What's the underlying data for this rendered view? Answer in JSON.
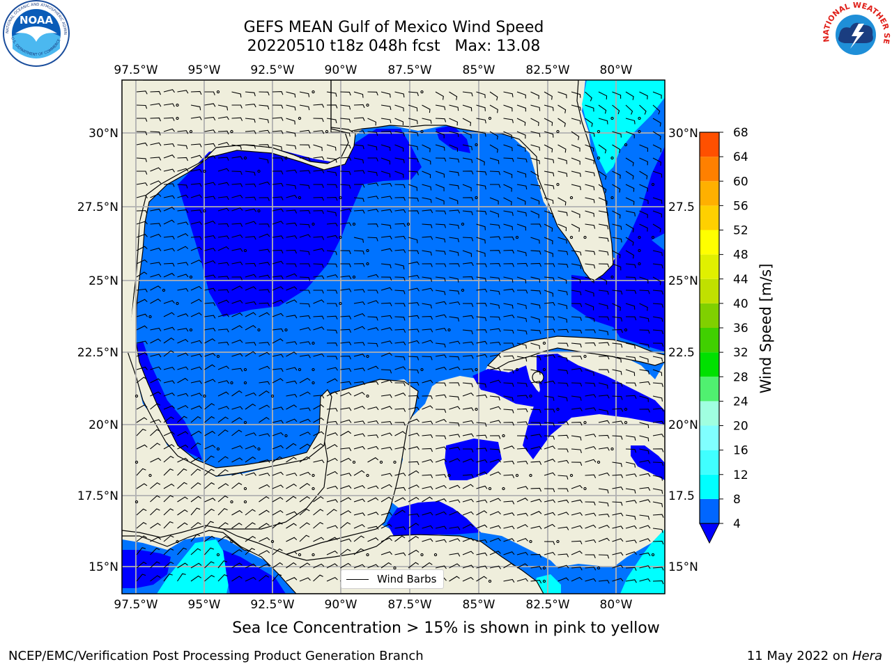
{
  "title_line1": "GEFS MEAN Gulf of Mexico Wind Speed",
  "title_line2": "20220510 t18z 048h fcst   Max: 13.08",
  "top_lon_labels": [
    "97.5°W",
    "95°W",
    "92.5°W",
    "90°W",
    "87.5°W",
    "85°W",
    "82.5°W",
    "80°W"
  ],
  "bottom_lon_labels": [
    "97.5°W",
    "95°W",
    "92.5°W",
    "90°W",
    "87.5°W",
    "85°W",
    "82.5°W",
    "80°W"
  ],
  "left_lat_labels": [
    "30°N",
    "27.5°N",
    "25°N",
    "22.5°N",
    "20°N",
    "17.5°N",
    "15°N"
  ],
  "right_lat_labels": [
    "30°N",
    "27.5",
    "25°N",
    "22.5",
    "20°N",
    "17.5",
    "15°N"
  ],
  "colorbar": {
    "label": "Wind Speed [m/s]",
    "ticks": [
      "68",
      "64",
      "60",
      "56",
      "52",
      "48",
      "44",
      "40",
      "36",
      "32",
      "28",
      "24",
      "20",
      "16",
      "12",
      "8",
      "4"
    ],
    "colors": [
      "#0000ff",
      "#0066ff",
      "#00ffff",
      "#40ffff",
      "#80ffff",
      "#a0ffe0",
      "#50f070",
      "#00e000",
      "#40d000",
      "#80d000",
      "#c0e000",
      "#e0f000",
      "#ffff00",
      "#ffd000",
      "#ffb000",
      "#ff8000",
      "#ff5000",
      "#ff2000",
      "#ff0000"
    ]
  },
  "legend": {
    "label": "Wind Barbs"
  },
  "caption": "Sea Ice Concentration > 15% is shown in pink to yellow",
  "footer_left": "NCEP/EMC/Verification Post Processing Product Generation Branch",
  "footer_right_date": "11 May 2022 on",
  "footer_right_host": "Hera",
  "logos": {
    "noaa_ring_text": "NATIONAL OCEANIC AND ATMOSPHERIC ADMINISTRATION",
    "noaa_center": "NOAA",
    "noaa_bottom_text": "U.S. DEPARTMENT OF COMMERCE",
    "nws_ring_text": "NATIONAL WEATHER SERVICE"
  },
  "colors": {
    "land": "#efeedc",
    "ocean_4_8": "#0073ff",
    "ocean_below_4": "#0000ff",
    "ocean_8_12": "#00ffff",
    "grid": "#b0b0b0"
  }
}
